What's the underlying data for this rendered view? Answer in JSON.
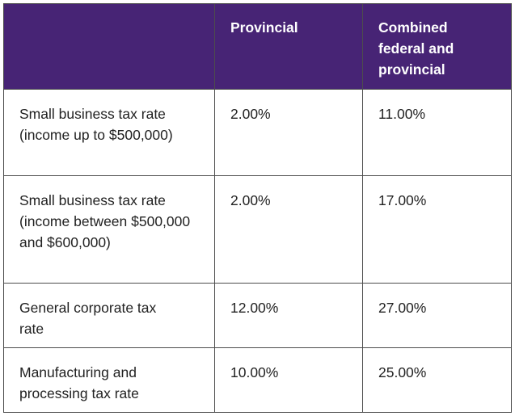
{
  "table": {
    "headers": [
      "",
      "Provincial",
      "Combined federal and provincial"
    ],
    "rows": [
      {
        "label": "Small business tax rate (income up to $500,000)",
        "provincial": "2.00%",
        "combined": "11.00%"
      },
      {
        "label": "Small business tax rate (income between $500,000 and $600,000)",
        "provincial": "2.00%",
        "combined": "17.00%"
      },
      {
        "label": "General corporate tax rate",
        "provincial": "12.00%",
        "combined": "27.00%"
      },
      {
        "label": "Manufacturing and processing tax rate",
        "provincial": "10.00%",
        "combined": "25.00%"
      }
    ],
    "colors": {
      "header_bg": "#472475",
      "header_text": "#ffffff",
      "border": "#4d4d4d"
    }
  }
}
